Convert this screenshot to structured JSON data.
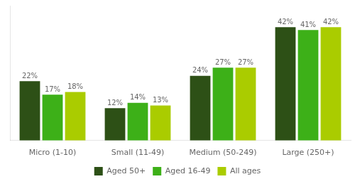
{
  "chart_data": {
    "type": "bar",
    "categories": [
      "Micro (1-10)",
      "Small (11-49)",
      "Medium (50-249)",
      "Large (250+)"
    ],
    "series": [
      {
        "name": "Aged 50+",
        "color": "#2d5016",
        "values": [
          22,
          12,
          24,
          42
        ],
        "value_labels": [
          "22%",
          "12%",
          "24%",
          "42%"
        ]
      },
      {
        "name": "Aged 16-49",
        "color": "#3db018",
        "values": [
          17,
          14,
          27,
          41
        ],
        "value_labels": [
          "17%",
          "14%",
          "27%",
          "41%"
        ]
      },
      {
        "name": "All ages",
        "color": "#aacc00",
        "values": [
          18,
          13,
          27,
          42
        ],
        "value_labels": [
          "18%",
          "13%",
          "27%",
          "42%"
        ]
      }
    ],
    "ylim": [
      0,
      50
    ],
    "grid": false,
    "legend": "bottom",
    "data_labels": true,
    "tick_labels": "x"
  }
}
